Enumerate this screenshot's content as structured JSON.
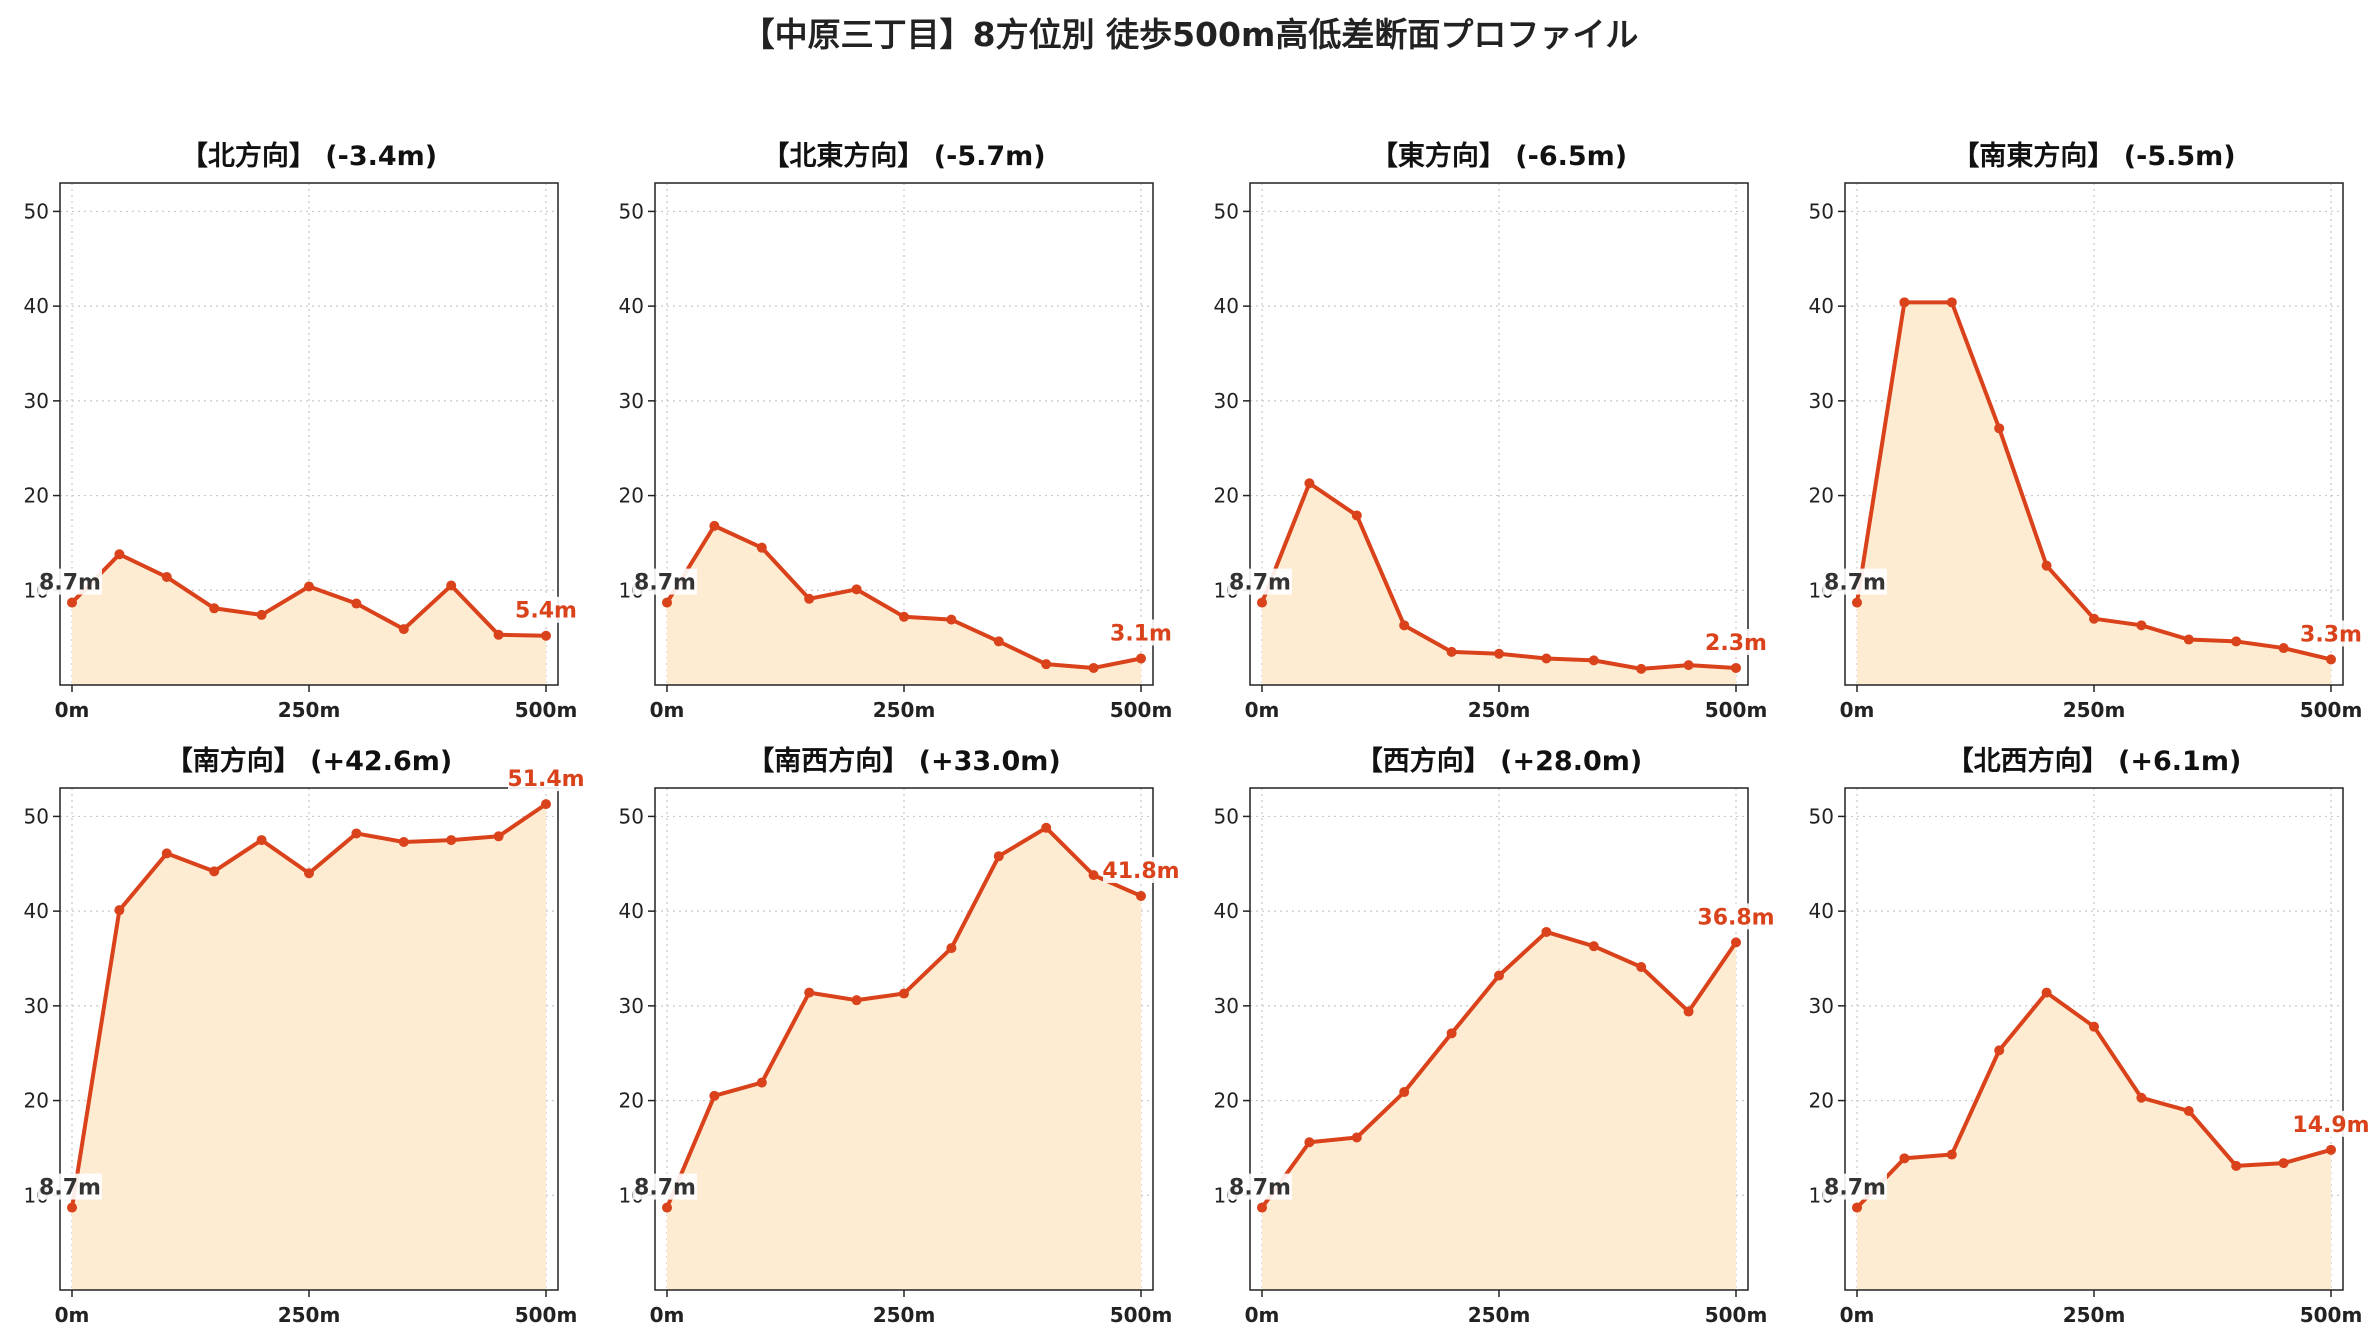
{
  "figure": {
    "title": "【中原三丁目】8方位別 徒歩500m高低差断面プロファイル"
  },
  "colors": {
    "line": "#d9421a",
    "fill": "#feecd2",
    "grid": "#c8c8c8",
    "end_label": "#d9421a",
    "start_label": "#333333"
  },
  "chart_data": [
    {
      "type": "area",
      "title": "【北方向】 (-3.4m)",
      "x": [
        0,
        50,
        100,
        150,
        200,
        250,
        300,
        350,
        400,
        450,
        500
      ],
      "y": [
        8.7,
        13.8,
        11.4,
        8.1,
        7.4,
        10.4,
        8.6,
        5.9,
        10.5,
        5.3,
        5.2
      ],
      "start_label": "8.7m",
      "end_label": "5.4m",
      "xticks": [
        "0m",
        "250m",
        "500m"
      ],
      "yticks": [
        10,
        20,
        30,
        40,
        50
      ],
      "xlim": [
        0,
        500
      ],
      "ylim": [
        0,
        53
      ],
      "grid": true
    },
    {
      "type": "area",
      "title": "【北東方向】 (-5.7m)",
      "x": [
        0,
        50,
        100,
        150,
        200,
        250,
        300,
        350,
        400,
        450,
        500
      ],
      "y": [
        8.7,
        16.8,
        14.5,
        9.1,
        10.1,
        7.2,
        6.9,
        4.6,
        2.2,
        1.8,
        2.8
      ],
      "start_label": "8.7m",
      "end_label": "3.1m",
      "xticks": [
        "0m",
        "250m",
        "500m"
      ],
      "yticks": [
        10,
        20,
        30,
        40,
        50
      ],
      "xlim": [
        0,
        500
      ],
      "ylim": [
        0,
        53
      ],
      "grid": true
    },
    {
      "type": "area",
      "title": "【東方向】 (-6.5m)",
      "x": [
        0,
        50,
        100,
        150,
        200,
        250,
        300,
        350,
        400,
        450,
        500
      ],
      "y": [
        8.7,
        21.3,
        17.9,
        6.3,
        3.5,
        3.3,
        2.8,
        2.6,
        1.7,
        2.1,
        1.8
      ],
      "start_label": "8.7m",
      "end_label": "2.3m",
      "xticks": [
        "0m",
        "250m",
        "500m"
      ],
      "yticks": [
        10,
        20,
        30,
        40,
        50
      ],
      "xlim": [
        0,
        500
      ],
      "ylim": [
        0,
        53
      ],
      "grid": true
    },
    {
      "type": "area",
      "title": "【南東方向】 (-5.5m)",
      "x": [
        0,
        50,
        100,
        150,
        200,
        250,
        300,
        350,
        400,
        450,
        500
      ],
      "y": [
        8.7,
        40.4,
        40.4,
        27.1,
        12.6,
        7.0,
        6.3,
        4.8,
        4.6,
        3.9,
        2.7
      ],
      "start_label": "8.7m",
      "end_label": "3.3m",
      "xticks": [
        "0m",
        "250m",
        "500m"
      ],
      "yticks": [
        10,
        20,
        30,
        40,
        50
      ],
      "xlim": [
        0,
        500
      ],
      "ylim": [
        0,
        53
      ],
      "grid": true
    },
    {
      "type": "area",
      "title": "【南方向】 (+42.6m)",
      "x": [
        0,
        50,
        100,
        150,
        200,
        250,
        300,
        350,
        400,
        450,
        500
      ],
      "y": [
        8.7,
        40.1,
        46.1,
        44.2,
        47.5,
        44.0,
        48.2,
        47.3,
        47.5,
        47.9,
        51.3
      ],
      "start_label": "8.7m",
      "end_label": "51.4m",
      "xticks": [
        "0m",
        "250m",
        "500m"
      ],
      "yticks": [
        10,
        20,
        30,
        40,
        50
      ],
      "xlim": [
        0,
        500
      ],
      "ylim": [
        0,
        53
      ],
      "grid": true
    },
    {
      "type": "area",
      "title": "【南西方向】 (+33.0m)",
      "x": [
        0,
        50,
        100,
        150,
        200,
        250,
        300,
        350,
        400,
        450,
        500
      ],
      "y": [
        8.7,
        20.5,
        21.9,
        31.4,
        30.6,
        31.3,
        36.1,
        45.8,
        48.8,
        43.8,
        41.6
      ],
      "start_label": "8.7m",
      "end_label": "41.8m",
      "xticks": [
        "0m",
        "250m",
        "500m"
      ],
      "yticks": [
        10,
        20,
        30,
        40,
        50
      ],
      "xlim": [
        0,
        500
      ],
      "ylim": [
        0,
        53
      ],
      "grid": true
    },
    {
      "type": "area",
      "title": "【西方向】 (+28.0m)",
      "x": [
        0,
        50,
        100,
        150,
        200,
        250,
        300,
        350,
        400,
        450,
        500
      ],
      "y": [
        8.7,
        15.6,
        16.1,
        20.9,
        27.1,
        33.2,
        37.8,
        36.3,
        34.1,
        29.4,
        36.7
      ],
      "start_label": "8.7m",
      "end_label": "36.8m",
      "xticks": [
        "0m",
        "250m",
        "500m"
      ],
      "yticks": [
        10,
        20,
        30,
        40,
        50
      ],
      "xlim": [
        0,
        500
      ],
      "ylim": [
        0,
        53
      ],
      "grid": true
    },
    {
      "type": "area",
      "title": "【北西方向】 (+6.1m)",
      "x": [
        0,
        50,
        100,
        150,
        200,
        250,
        300,
        350,
        400,
        450,
        500
      ],
      "y": [
        8.7,
        13.9,
        14.3,
        25.3,
        31.4,
        27.8,
        20.3,
        18.9,
        13.1,
        13.4,
        14.8
      ],
      "start_label": "8.7m",
      "end_label": "14.9m",
      "xticks": [
        "0m",
        "250m",
        "500m"
      ],
      "yticks": [
        10,
        20,
        30,
        40,
        50
      ],
      "xlim": [
        0,
        500
      ],
      "ylim": [
        0,
        53
      ],
      "grid": true
    }
  ]
}
